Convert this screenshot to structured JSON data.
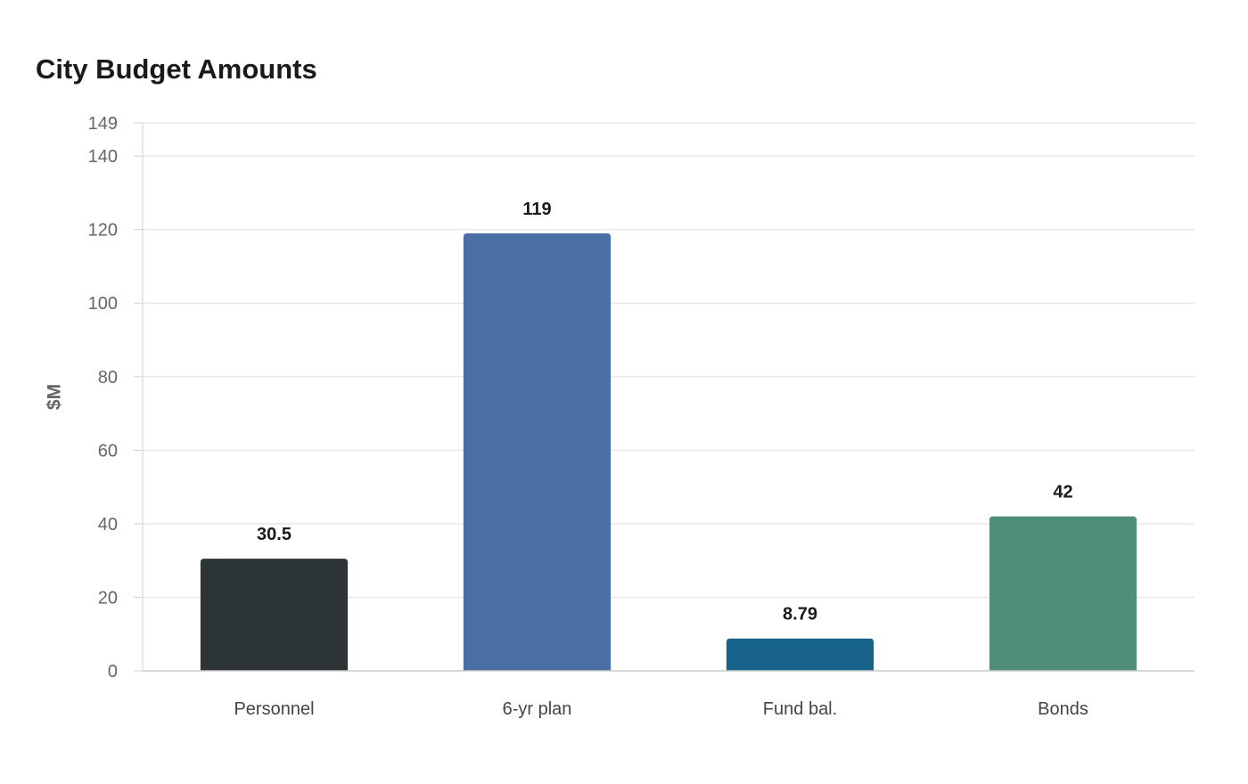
{
  "chart_data": {
    "type": "bar",
    "title": "City Budget Amounts",
    "xlabel": "",
    "ylabel": "$M",
    "categories": [
      "Personnel",
      "6-yr plan",
      "Fund bal.",
      "Bonds"
    ],
    "values": [
      30.5,
      119,
      8.79,
      42
    ],
    "value_labels": [
      "30.5",
      "119",
      "8.79",
      "42"
    ],
    "colors": [
      "#2d3436",
      "#4a6fa5",
      "#17628a",
      "#4f8e7b"
    ],
    "ylim": [
      0,
      149
    ],
    "yticks": [
      0,
      20,
      40,
      60,
      80,
      100,
      120,
      140,
      149
    ],
    "grid": true,
    "legend": "none"
  }
}
